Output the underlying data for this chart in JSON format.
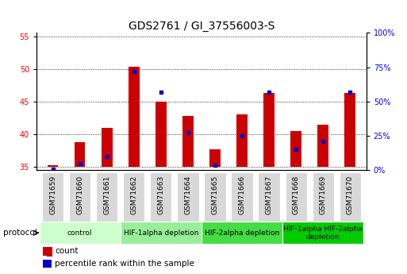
{
  "title": "GDS2761 / GI_37556003-S",
  "samples": [
    "GSM71659",
    "GSM71660",
    "GSM71661",
    "GSM71662",
    "GSM71663",
    "GSM71664",
    "GSM71665",
    "GSM71666",
    "GSM71667",
    "GSM71668",
    "GSM71669",
    "GSM71670"
  ],
  "count_values": [
    35.2,
    38.8,
    41.0,
    50.3,
    45.0,
    42.8,
    37.6,
    43.0,
    46.3,
    40.5,
    41.4,
    46.3
  ],
  "percentile_values": [
    0.5,
    4.5,
    10.0,
    72.0,
    57.0,
    27.0,
    3.5,
    25.0,
    57.0,
    15.0,
    21.0,
    57.0
  ],
  "bar_bottom": 35.0,
  "bar_color": "#cc0000",
  "dot_color": "#0000cc",
  "ylim_left": [
    34.5,
    55.5
  ],
  "ylim_right": [
    0,
    100
  ],
  "yticks_left": [
    35,
    40,
    45,
    50,
    55
  ],
  "yticks_right": [
    0,
    25,
    50,
    75,
    100
  ],
  "ytick_labels_right": [
    "0%",
    "25%",
    "50%",
    "75%",
    "100%"
  ],
  "groups": [
    {
      "label": "control",
      "start": 0,
      "end": 2,
      "color": "#ccffcc"
    },
    {
      "label": "HIF-1alpha depletion",
      "start": 3,
      "end": 5,
      "color": "#99ee99"
    },
    {
      "label": "HIF-2alpha depletion",
      "start": 6,
      "end": 8,
      "color": "#44dd44"
    },
    {
      "label": "HIF-1alpha HIF-2alpha\ndepletion",
      "start": 9,
      "end": 11,
      "color": "#00cc00"
    }
  ],
  "bar_width": 0.4,
  "dot_size": 18,
  "title_fontsize": 10,
  "tick_fontsize": 7,
  "legend_fontsize": 7.5,
  "group_label_fontsize": 6.5,
  "protocol_label_fontsize": 7.5
}
